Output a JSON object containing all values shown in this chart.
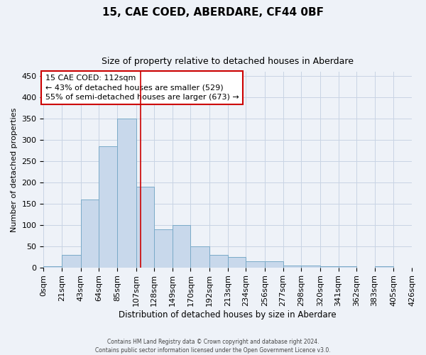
{
  "title1": "15, CAE COED, ABERDARE, CF44 0BF",
  "title2": "Size of property relative to detached houses in Aberdare",
  "xlabel": "Distribution of detached houses by size in Aberdare",
  "ylabel": "Number of detached properties",
  "bin_edges": [
    0,
    21,
    43,
    64,
    85,
    107,
    128,
    149,
    170,
    192,
    213,
    234,
    256,
    277,
    298,
    320,
    341,
    362,
    383,
    405,
    426
  ],
  "bar_heights": [
    2,
    30,
    160,
    285,
    350,
    190,
    90,
    100,
    50,
    30,
    25,
    15,
    15,
    5,
    5,
    2,
    2,
    0,
    2,
    0
  ],
  "bar_color": "#c8d8eb",
  "bar_edge_color": "#7aaac8",
  "grid_color": "#c8d4e4",
  "background_color": "#eef2f8",
  "red_line_x": 112,
  "annotation_text": "15 CAE COED: 112sqm\n← 43% of detached houses are smaller (529)\n55% of semi-detached houses are larger (673) →",
  "annotation_box_color": "white",
  "annotation_box_edge_color": "#cc0000",
  "ylim": [
    0,
    460
  ],
  "yticks": [
    0,
    50,
    100,
    150,
    200,
    250,
    300,
    350,
    400,
    450
  ],
  "footer_text": "Contains HM Land Registry data © Crown copyright and database right 2024.\nContains public sector information licensed under the Open Government Licence v3.0.",
  "tick_labels": [
    "0sqm",
    "21sqm",
    "43sqm",
    "64sqm",
    "85sqm",
    "107sqm",
    "128sqm",
    "149sqm",
    "170sqm",
    "192sqm",
    "213sqm",
    "234sqm",
    "256sqm",
    "277sqm",
    "298sqm",
    "320sqm",
    "341sqm",
    "362sqm",
    "383sqm",
    "405sqm",
    "426sqm"
  ]
}
